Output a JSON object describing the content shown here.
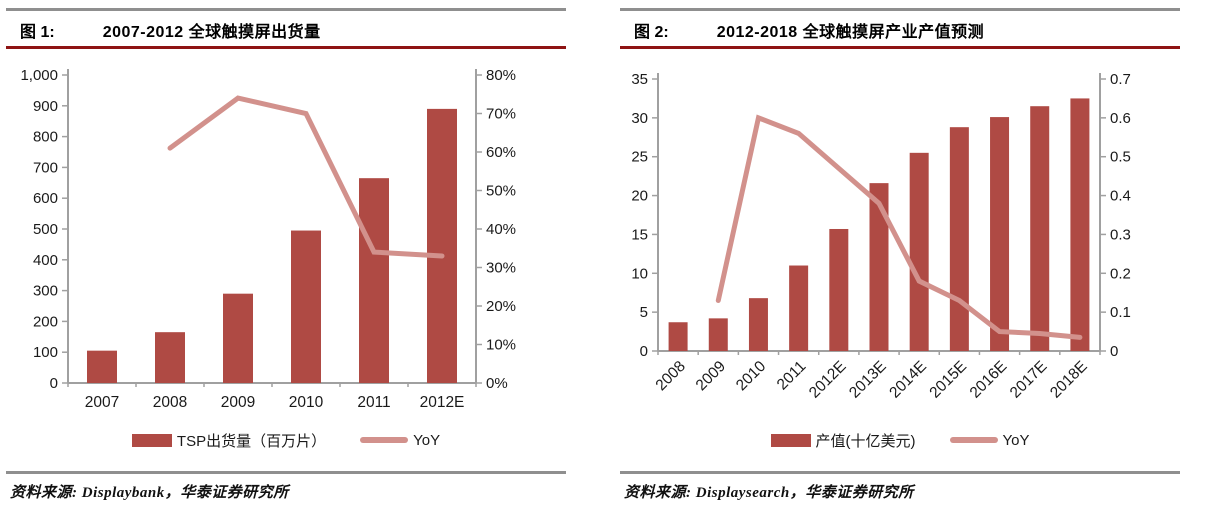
{
  "colors": {
    "bar": "#AF4A44",
    "line": "#D2918C",
    "rule_red": "#8E1313",
    "rule_gray": "#8F8F8F",
    "axis": "#A0A0A0",
    "text": "#1A1A1A"
  },
  "figures": [
    {
      "label": "图 1:",
      "title": "2007-2012 全球触摸屏出货量",
      "legend": [
        {
          "type": "bar",
          "label": "TSP出货量（百万片）"
        },
        {
          "type": "line",
          "label": "YoY"
        }
      ],
      "source": "资料来源: Displaybank，华泰证券研究所"
    },
    {
      "label": "图 2:",
      "title": "2012-2018 全球触摸屏产业产值预测",
      "legend": [
        {
          "type": "bar",
          "label": "产值(十亿美元)"
        },
        {
          "type": "line",
          "label": "YoY"
        }
      ],
      "source": "资料来源: Displaysearch，华泰证券研究所"
    }
  ],
  "chart_data": [
    {
      "type": "bar",
      "title": "2007-2012 全球触摸屏出货量",
      "categories": [
        "2007",
        "2008",
        "2009",
        "2010",
        "2011",
        "2012E"
      ],
      "series": [
        {
          "name": "TSP出货量（百万片）",
          "type": "bar",
          "axis": "left",
          "values": [
            105,
            165,
            290,
            495,
            665,
            890
          ]
        },
        {
          "name": "YoY",
          "type": "line",
          "axis": "right",
          "values": [
            null,
            0.61,
            0.74,
            0.7,
            0.34,
            0.33
          ]
        }
      ],
      "left_axis": {
        "min": 0,
        "max": 1000,
        "tick_labels": [
          "0",
          "100",
          "200",
          "300",
          "400",
          "500",
          "600",
          "700",
          "800",
          "900",
          "1,000"
        ]
      },
      "right_axis": {
        "min": 0,
        "max": 0.8,
        "tick_labels": [
          "0%",
          "10%",
          "20%",
          "30%",
          "40%",
          "50%",
          "60%",
          "70%",
          "80%"
        ]
      },
      "grid": false,
      "legend_position": "bottom",
      "x_labels_rotated": false
    },
    {
      "type": "bar",
      "title": "2012-2018 全球触摸屏产业产值预测",
      "categories": [
        "2008",
        "2009",
        "2010",
        "2011",
        "2012E",
        "2013E",
        "2014E",
        "2015E",
        "2016E",
        "2017E",
        "2018E"
      ],
      "series": [
        {
          "name": "产值(十亿美元)",
          "type": "bar",
          "axis": "left",
          "values": [
            3.7,
            4.2,
            6.8,
            11.0,
            15.7,
            21.6,
            25.5,
            28.8,
            30.1,
            31.5,
            32.5
          ]
        },
        {
          "name": "YoY",
          "type": "line",
          "axis": "right",
          "values": [
            null,
            0.13,
            0.6,
            0.56,
            0.47,
            0.38,
            0.18,
            0.13,
            0.05,
            0.045,
            0.035
          ]
        }
      ],
      "left_axis": {
        "min": 0,
        "max": 35,
        "tick_labels": [
          "0",
          "5",
          "10",
          "15",
          "20",
          "25",
          "30",
          "35"
        ]
      },
      "right_axis": {
        "min": 0,
        "max": 0.7,
        "tick_labels": [
          "0",
          "0.1",
          "0.2",
          "0.3",
          "0.4",
          "0.5",
          "0.6",
          "0.7"
        ]
      },
      "grid": false,
      "legend_position": "bottom",
      "x_labels_rotated": true
    }
  ]
}
